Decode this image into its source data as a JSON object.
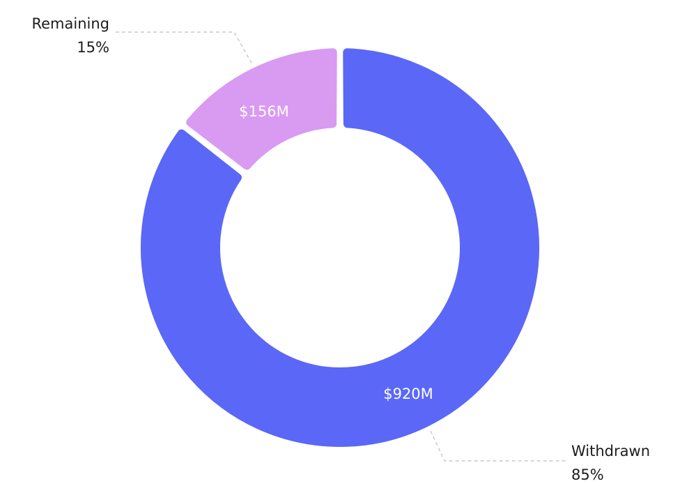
{
  "chart_data": {
    "type": "pie",
    "variant": "donut",
    "title": "",
    "slices": [
      {
        "name": "Withdrawn",
        "value": 920,
        "value_label": "$920M",
        "percent_label": "85%",
        "color": "#5b67f7"
      },
      {
        "name": "Remaining",
        "value": 156,
        "value_label": "$156M",
        "percent_label": "15%",
        "color": "#d99af2"
      }
    ],
    "legend": "none"
  }
}
